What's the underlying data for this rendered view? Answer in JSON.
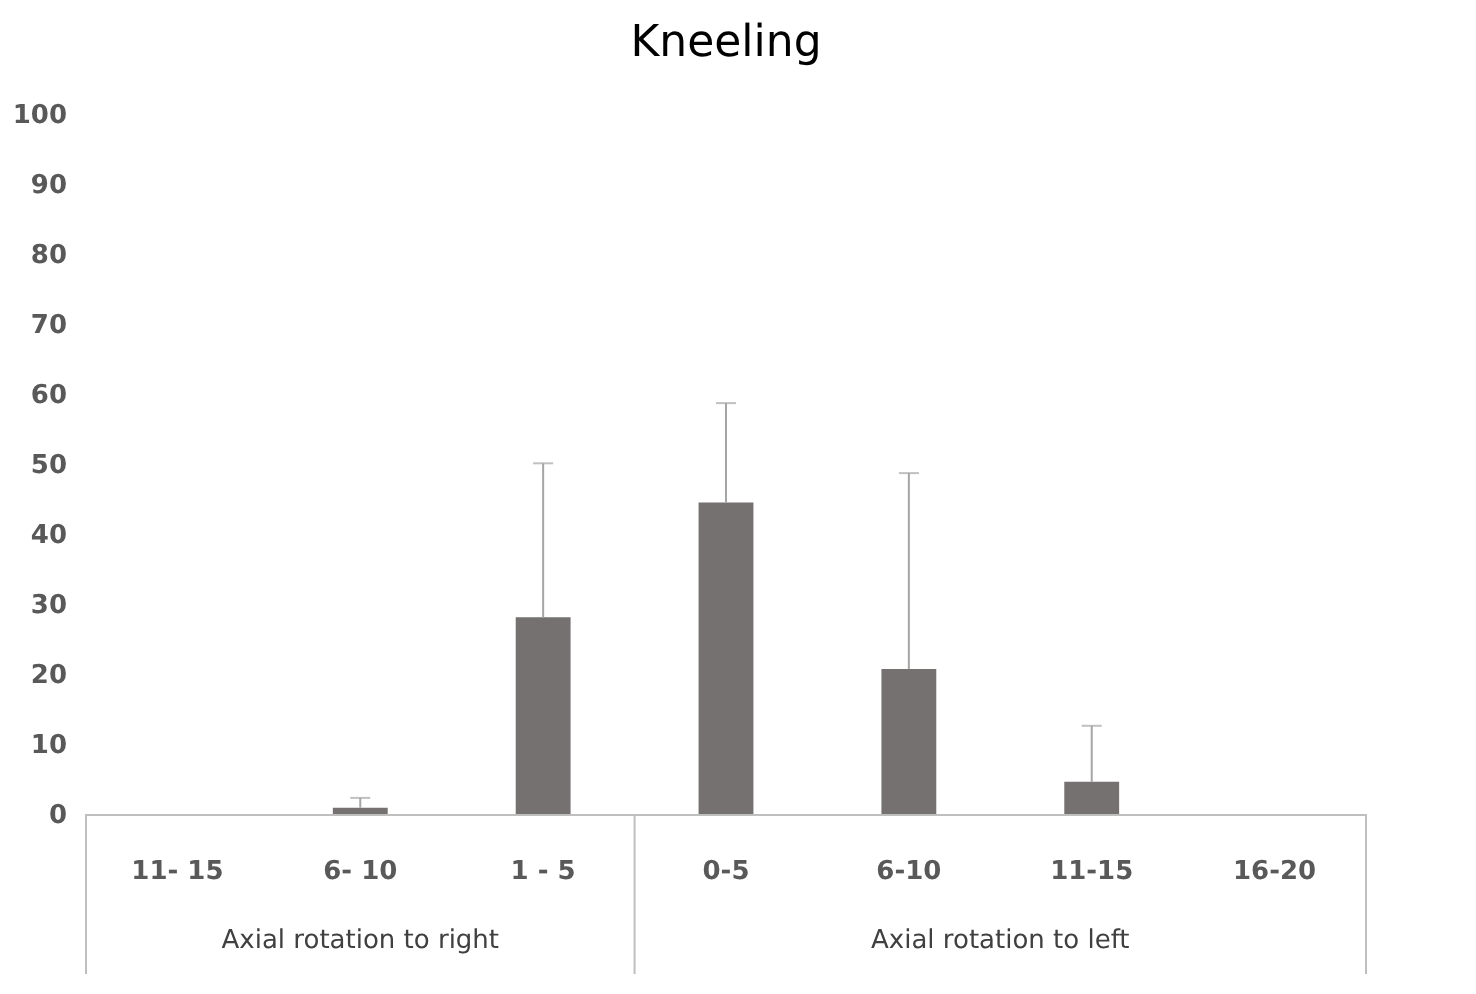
{
  "chart_data": {
    "type": "bar",
    "title": "Kneeling",
    "categories": [
      "11- 15",
      "6- 10",
      "1 - 5",
      "0-5",
      "6-10",
      "11-15",
      "16-20"
    ],
    "values": [
      0,
      0.9,
      28.1,
      44.5,
      20.7,
      4.6,
      0
    ],
    "errors": [
      null,
      [
        0.9,
        2.3
      ],
      [
        28.1,
        50.1
      ],
      [
        44.5,
        58.7
      ],
      [
        20.7,
        48.7
      ],
      [
        4.6,
        12.6
      ],
      null
    ],
    "color": "#757171",
    "annotations": [
      "Axial rotation to right",
      "Axial rotation to left"
    ],
    "ylim": [
      0,
      100
    ],
    "yticks": [
      0,
      10,
      20,
      30,
      40,
      50,
      60,
      70,
      80,
      90,
      100
    ],
    "grid": false
  }
}
